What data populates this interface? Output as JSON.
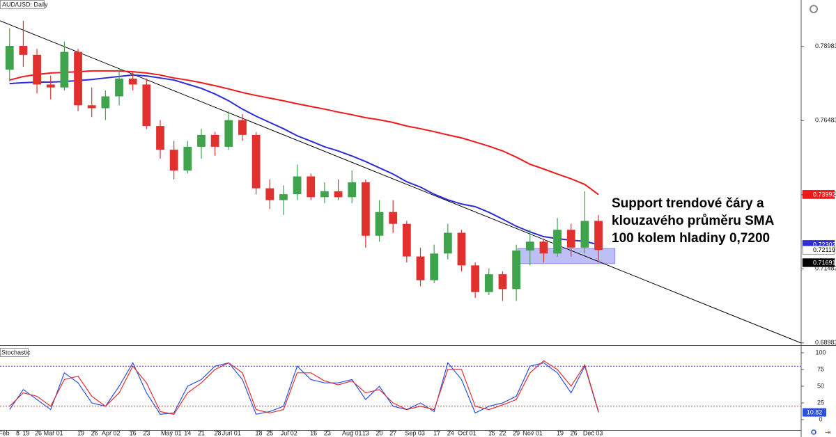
{
  "chart_data": [
    {
      "type": "candlestick",
      "title": "AUD/USD: Daily",
      "x": [
        2,
        7,
        12,
        17,
        22,
        27,
        32,
        37,
        42,
        47,
        52,
        57,
        62,
        67,
        72,
        77,
        82,
        87,
        92,
        97,
        102,
        107,
        112,
        117,
        122,
        127,
        132,
        137,
        142,
        147,
        152,
        157,
        162,
        167,
        172,
        177,
        182,
        187,
        192,
        197,
        202,
        207,
        212,
        217
      ],
      "open": [
        0.782,
        0.79,
        0.787,
        0.777,
        0.776,
        0.788,
        0.77,
        0.769,
        0.773,
        0.779,
        0.777,
        0.763,
        0.755,
        0.748,
        0.756,
        0.76,
        0.756,
        0.765,
        0.76,
        0.742,
        0.738,
        0.74,
        0.746,
        0.739,
        0.741,
        0.739,
        0.744,
        0.726,
        0.734,
        0.73,
        0.719,
        0.711,
        0.72,
        0.727,
        0.716,
        0.707,
        0.713,
        0.708,
        0.721,
        0.724,
        0.72,
        0.728,
        0.722,
        0.731
      ],
      "high": [
        0.796,
        0.7985,
        0.789,
        0.78,
        0.7915,
        0.789,
        0.776,
        0.775,
        0.782,
        0.7815,
        0.779,
        0.765,
        0.758,
        0.758,
        0.762,
        0.761,
        0.768,
        0.767,
        0.761,
        0.745,
        0.743,
        0.75,
        0.747,
        0.744,
        0.745,
        0.748,
        0.745,
        0.738,
        0.738,
        0.731,
        0.722,
        0.723,
        0.73,
        0.728,
        0.717,
        0.715,
        0.714,
        0.723,
        0.728,
        0.725,
        0.732,
        0.73,
        0.741,
        0.733
      ],
      "low": [
        0.778,
        0.783,
        0.774,
        0.772,
        0.775,
        0.768,
        0.766,
        0.765,
        0.77,
        0.775,
        0.762,
        0.752,
        0.745,
        0.747,
        0.752,
        0.753,
        0.755,
        0.758,
        0.74,
        0.735,
        0.733,
        0.738,
        0.738,
        0.737,
        0.738,
        0.737,
        0.722,
        0.724,
        0.727,
        0.717,
        0.709,
        0.71,
        0.718,
        0.714,
        0.705,
        0.706,
        0.704,
        0.704,
        0.716,
        0.717,
        0.719,
        0.719,
        0.72,
        0.717
      ],
      "close": [
        0.79,
        0.787,
        0.777,
        0.776,
        0.788,
        0.77,
        0.769,
        0.773,
        0.779,
        0.777,
        0.763,
        0.755,
        0.748,
        0.756,
        0.76,
        0.756,
        0.765,
        0.76,
        0.742,
        0.738,
        0.74,
        0.746,
        0.739,
        0.741,
        0.739,
        0.744,
        0.726,
        0.734,
        0.73,
        0.719,
        0.711,
        0.72,
        0.727,
        0.716,
        0.707,
        0.713,
        0.708,
        0.721,
        0.724,
        0.72,
        0.728,
        0.722,
        0.731,
        0.72119
      ],
      "up_color": "#3fa34d",
      "down_color": "#e0312f",
      "lines": [
        {
          "color": "#2b2bd8",
          "values": [
            0.7773,
            0.7776,
            0.7778,
            0.7778,
            0.778,
            0.7783,
            0.7787,
            0.7792,
            0.7797,
            0.7802,
            0.7799,
            0.7792,
            0.7785,
            0.7771,
            0.7757,
            0.7738,
            0.7715,
            0.7687,
            0.7663,
            0.7642,
            0.7621,
            0.7597,
            0.7579,
            0.756,
            0.7546,
            0.7529,
            0.751,
            0.7489,
            0.7468,
            0.7442,
            0.7424,
            0.74,
            0.7381,
            0.7367,
            0.7358,
            0.7339,
            0.7316,
            0.7292,
            0.7273,
            0.7257,
            0.725,
            0.7245,
            0.7241,
            0.723
          ]
        },
        {
          "color": "#f01818",
          "values": [
            0.7785,
            0.7797,
            0.7804,
            0.7809,
            0.7811,
            0.7813,
            0.7816,
            0.7816,
            0.7816,
            0.7813,
            0.7809,
            0.7802,
            0.7792,
            0.7785,
            0.7776,
            0.7766,
            0.7755,
            0.7743,
            0.7733,
            0.7724,
            0.7715,
            0.7705,
            0.7696,
            0.7687,
            0.7677,
            0.7668,
            0.7658,
            0.7651,
            0.7642,
            0.763,
            0.7621,
            0.7611,
            0.76,
            0.759,
            0.7576,
            0.7562,
            0.7546,
            0.7525,
            0.7501,
            0.7485,
            0.7468,
            0.7452,
            0.7433,
            0.7399
          ]
        }
      ],
      "trendline": {
        "x": [
          -1.5,
          291
        ],
        "values": [
          0.7985,
          0.6898
        ],
        "color": "#000000"
      },
      "support_zone": {
        "x": [
          187.5,
          223
        ],
        "values": [
          0.7166,
          0.7217
        ],
        "color": "#8a8af2"
      },
      "annotation": [
        "Support trendové čáry a",
        "klouzavého průměru SMA",
        "100 kolem hladiny 0,7200"
      ],
      "xlim": [
        -1.5,
        291
      ],
      "ylim": [
        0.6898,
        0.8055
      ],
      "yticks": [
        0.68983,
        0.71483,
        0.73983,
        0.76483,
        0.78983
      ],
      "price_badges": [
        {
          "value": 0.73992,
          "color": "#f01818",
          "text_color": "#ffffff"
        },
        {
          "value": 0.72302,
          "color": "#2b2bd8",
          "text_color": "#ffffff"
        },
        {
          "value": 0.72119,
          "color": "#ffffff",
          "text_color": "#000000"
        },
        {
          "value": 0.71691,
          "color": "#000000",
          "text_color": "#ffffff"
        }
      ]
    },
    {
      "type": "line",
      "title": "Stochastic",
      "x": [
        2,
        7,
        12,
        17,
        22,
        27,
        32,
        37,
        42,
        47,
        52,
        57,
        62,
        67,
        72,
        77,
        82,
        87,
        92,
        97,
        102,
        107,
        112,
        117,
        122,
        127,
        132,
        137,
        142,
        147,
        152,
        157,
        162,
        167,
        172,
        177,
        182,
        187,
        192,
        197,
        202,
        207,
        212,
        217
      ],
      "series": [
        {
          "color": "#2b4fe0",
          "values": [
            15,
            45,
            30,
            15,
            70,
            55,
            25,
            20,
            50,
            85,
            40,
            8,
            10,
            50,
            60,
            80,
            85,
            60,
            8,
            12,
            20,
            80,
            60,
            55,
            55,
            60,
            30,
            50,
            20,
            15,
            25,
            12,
            85,
            60,
            10,
            20,
            25,
            35,
            80,
            85,
            70,
            40,
            80,
            10.82
          ]
        },
        {
          "color": "#e03030",
          "values": [
            20,
            40,
            35,
            20,
            60,
            65,
            35,
            20,
            40,
            80,
            55,
            12,
            8,
            40,
            55,
            75,
            85,
            70,
            15,
            10,
            15,
            70,
            70,
            58,
            52,
            58,
            40,
            45,
            25,
            15,
            20,
            15,
            75,
            75,
            20,
            15,
            22,
            30,
            70,
            88,
            75,
            50,
            82,
            12
          ]
        }
      ],
      "levels": [
        {
          "value": 80,
          "color": "#3b3bd0"
        },
        {
          "value": 20,
          "color": "#e03030"
        }
      ],
      "current_badge": {
        "value": 10.82,
        "color": "#2b4fe0"
      },
      "xlim": [
        -1.5,
        291
      ],
      "ylim": [
        0,
        100
      ],
      "yticks": [
        0,
        25,
        50,
        75,
        100
      ],
      "xticks": [
        {
          "value": 0,
          "label": "Feb"
        },
        {
          "value": 5,
          "label": "8"
        },
        {
          "value": 8,
          "label": "19"
        },
        {
          "value": 12.5,
          "label": "26"
        },
        {
          "value": 18,
          "label": "Mar 01"
        },
        {
          "value": 28,
          "label": "19"
        },
        {
          "value": 33,
          "label": "26"
        },
        {
          "value": 39,
          "label": "Apr 02"
        },
        {
          "value": 47,
          "label": "16"
        },
        {
          "value": 52,
          "label": "23"
        },
        {
          "value": 61,
          "label": "May 01"
        },
        {
          "value": 67,
          "label": "14"
        },
        {
          "value": 72,
          "label": "21"
        },
        {
          "value": 78,
          "label": "28"
        },
        {
          "value": 83,
          "label": "Jun 01"
        },
        {
          "value": 93,
          "label": "18"
        },
        {
          "value": 97,
          "label": "25"
        },
        {
          "value": 104,
          "label": "Jul 02"
        },
        {
          "value": 113,
          "label": "16"
        },
        {
          "value": 118,
          "label": "23"
        },
        {
          "value": 127,
          "label": "Aug 01"
        },
        {
          "value": 132,
          "label": "13"
        },
        {
          "value": 137,
          "label": "20"
        },
        {
          "value": 142,
          "label": "27"
        },
        {
          "value": 150,
          "label": "Sep 03"
        },
        {
          "value": 158,
          "label": "17"
        },
        {
          "value": 163,
          "label": "24"
        },
        {
          "value": 169,
          "label": "Oct 01"
        },
        {
          "value": 178,
          "label": "15"
        },
        {
          "value": 182,
          "label": "22"
        },
        {
          "value": 187,
          "label": "29"
        },
        {
          "value": 193,
          "label": "Nov 01"
        },
        {
          "value": 203,
          "label": "19"
        },
        {
          "value": 208,
          "label": "26"
        },
        {
          "value": 215,
          "label": "Dec 03"
        }
      ]
    }
  ]
}
